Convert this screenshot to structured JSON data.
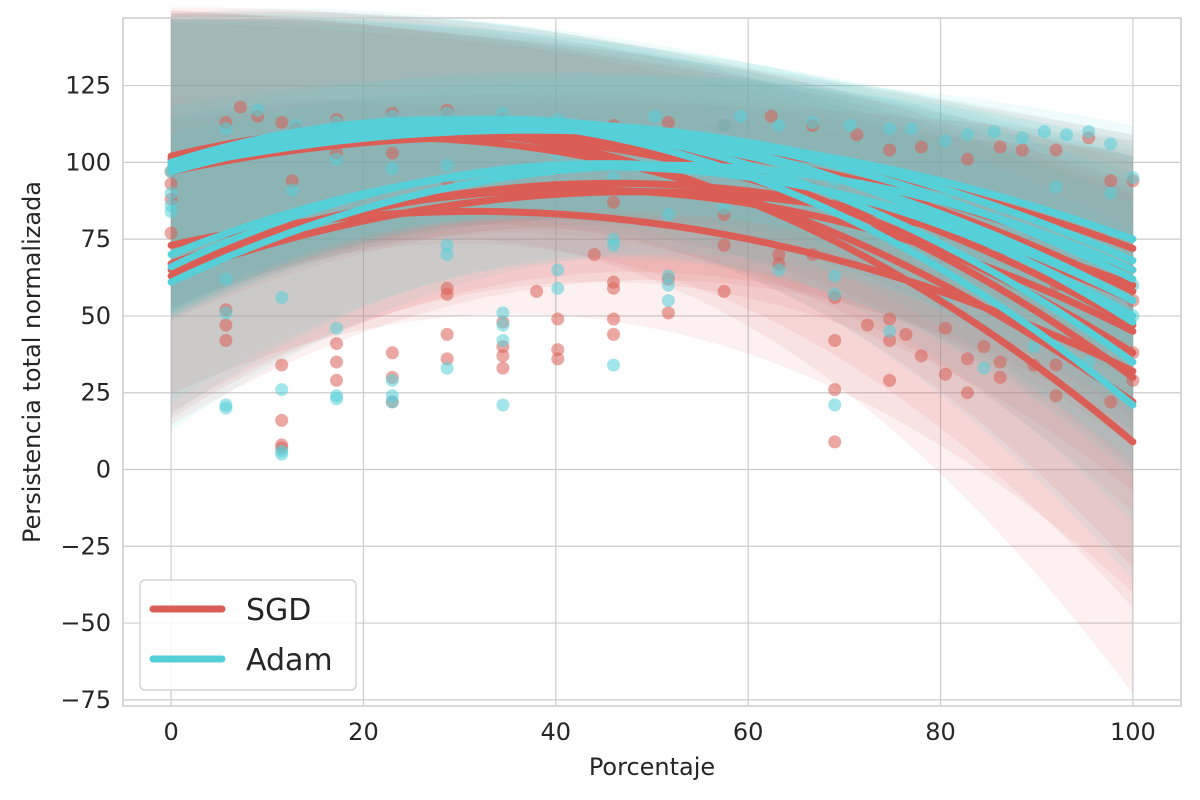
{
  "chart_data": {
    "type": "scatter",
    "xlabel": "Porcentaje",
    "ylabel": "Persistencia total normalizada",
    "xlim": [
      -5,
      105
    ],
    "ylim": [
      -77,
      147
    ],
    "x_ticks": [
      0,
      20,
      40,
      60,
      80,
      100
    ],
    "y_ticks": [
      -75,
      -50,
      -25,
      0,
      25,
      50,
      75,
      100,
      125
    ],
    "x_tick_labels": [
      "0",
      "20",
      "40",
      "60",
      "80",
      "100"
    ],
    "y_tick_labels": [
      "−75",
      "−50",
      "−25",
      "0",
      "25",
      "50",
      "75",
      "100",
      "125"
    ],
    "grid": true,
    "legend_position": "bottom-left",
    "colors": {
      "SGD": "#db5e56",
      "Adam": "#56d0d8",
      "grid": "#cccccc",
      "axes": "#cccccc"
    },
    "series": [
      {
        "name": "SGD",
        "color": "#db5e56",
        "fits": [
          {
            "start": 102,
            "peak_x": 30,
            "peak": 110,
            "end": 9,
            "band_end": 70
          },
          {
            "start": 101,
            "peak_x": 25,
            "peak": 108,
            "end": 22,
            "band_end": 55
          },
          {
            "start": 100,
            "peak_x": 35,
            "peak": 112,
            "end": 30,
            "band_end": 50
          },
          {
            "start": 99,
            "peak_x": 30,
            "peak": 109,
            "end": 38,
            "band_end": 40
          },
          {
            "start": 98,
            "peak_x": 40,
            "peak": 108,
            "end": 47,
            "band_end": 35
          },
          {
            "start": 100,
            "peak_x": 35,
            "peak": 111,
            "end": 58,
            "band_end": 30
          },
          {
            "start": 97,
            "peak_x": 45,
            "peak": 107,
            "end": 65,
            "band_end": 25
          },
          {
            "start": 101,
            "peak_x": 40,
            "peak": 110,
            "end": 72,
            "band_end": 25
          },
          {
            "start": 73,
            "peak_x": 30,
            "peak": 84,
            "end": 32,
            "band_end": 60
          },
          {
            "start": 67,
            "peak_x": 45,
            "peak": 91,
            "end": 45,
            "band_end": 40
          },
          {
            "start": 65,
            "peak_x": 50,
            "peak": 93,
            "end": 55,
            "band_end": 35
          },
          {
            "start": 63,
            "peak_x": 55,
            "peak": 90,
            "end": 60,
            "band_end": 35
          }
        ]
      },
      {
        "name": "Adam",
        "color": "#56d0d8",
        "fits": [
          {
            "start": 100,
            "peak_x": 35,
            "peak": 113,
            "end": 21,
            "band_end": 45
          },
          {
            "start": 99,
            "peak_x": 40,
            "peak": 112,
            "end": 35,
            "band_end": 40
          },
          {
            "start": 98,
            "peak_x": 45,
            "peak": 112,
            "end": 48,
            "band_end": 35
          },
          {
            "start": 100,
            "peak_x": 40,
            "peak": 111,
            "end": 55,
            "band_end": 30
          },
          {
            "start": 97,
            "peak_x": 50,
            "peak": 110,
            "end": 62,
            "band_end": 28
          },
          {
            "start": 99,
            "peak_x": 45,
            "peak": 112,
            "end": 68,
            "band_end": 25
          },
          {
            "start": 98,
            "peak_x": 50,
            "peak": 109,
            "end": 75,
            "band_end": 22
          },
          {
            "start": 70,
            "peak_x": 55,
            "peak": 97,
            "end": 55,
            "band_end": 40
          },
          {
            "start": 66,
            "peak_x": 55,
            "peak": 98,
            "end": 50,
            "band_end": 40
          },
          {
            "start": 61,
            "peak_x": 60,
            "peak": 98,
            "end": 65,
            "band_end": 35
          }
        ]
      }
    ],
    "x_samples": [
      0,
      5.7,
      11.5,
      17.2,
      23,
      28.7,
      34.5,
      40.2,
      46,
      51.7,
      57.5,
      63.2,
      69,
      74.7,
      80.5,
      86.2,
      92,
      97.7,
      100
    ],
    "sgd_points": [
      [
        0,
        97
      ],
      [
        0,
        93
      ],
      [
        0,
        77
      ],
      [
        0,
        88
      ],
      [
        5.7,
        47
      ],
      [
        5.7,
        42
      ],
      [
        5.7,
        52
      ],
      [
        11.5,
        34
      ],
      [
        11.5,
        16
      ],
      [
        11.5,
        7
      ],
      [
        11.5,
        8
      ],
      [
        17.2,
        41
      ],
      [
        17.2,
        35
      ],
      [
        17.2,
        29
      ],
      [
        23,
        38
      ],
      [
        23,
        30
      ],
      [
        23,
        22
      ],
      [
        28.7,
        59
      ],
      [
        28.7,
        57
      ],
      [
        28.7,
        44
      ],
      [
        28.7,
        36
      ],
      [
        34.5,
        48
      ],
      [
        34.5,
        40
      ],
      [
        34.5,
        33
      ],
      [
        34.5,
        37
      ],
      [
        38,
        58
      ],
      [
        40.2,
        49
      ],
      [
        40.2,
        39
      ],
      [
        40.2,
        36
      ],
      [
        44,
        70
      ],
      [
        46,
        61
      ],
      [
        46,
        59
      ],
      [
        46,
        49
      ],
      [
        46,
        44
      ],
      [
        51.7,
        62
      ],
      [
        51.7,
        51
      ],
      [
        57.5,
        58
      ],
      [
        57.5,
        73
      ],
      [
        63.2,
        70
      ],
      [
        63.2,
        67
      ],
      [
        66.7,
        70
      ],
      [
        69,
        56
      ],
      [
        69,
        42
      ],
      [
        69,
        26
      ],
      [
        69,
        9
      ],
      [
        72.4,
        47
      ],
      [
        74.7,
        49
      ],
      [
        74.7,
        42
      ],
      [
        74.7,
        29
      ],
      [
        76.4,
        44
      ],
      [
        78,
        37
      ],
      [
        80.5,
        46
      ],
      [
        80.5,
        31
      ],
      [
        82.8,
        36
      ],
      [
        82.8,
        25
      ],
      [
        84.5,
        40
      ],
      [
        86.2,
        35
      ],
      [
        86.2,
        30
      ],
      [
        89.7,
        34
      ],
      [
        92,
        34
      ],
      [
        92,
        24
      ],
      [
        97.7,
        22
      ],
      [
        100,
        38
      ],
      [
        100,
        29
      ],
      [
        5.7,
        113
      ],
      [
        7.2,
        118
      ],
      [
        9,
        115
      ],
      [
        11.5,
        113
      ],
      [
        13,
        111
      ],
      [
        17.2,
        114
      ],
      [
        23,
        116
      ],
      [
        28.7,
        117
      ],
      [
        34.5,
        114
      ],
      [
        40.2,
        112
      ],
      [
        46,
        112
      ],
      [
        51.7,
        113
      ],
      [
        57.5,
        112
      ],
      [
        62.4,
        115
      ],
      [
        66.7,
        112
      ],
      [
        71.3,
        109
      ],
      [
        74.7,
        104
      ],
      [
        78,
        105
      ],
      [
        82.8,
        101
      ],
      [
        86.2,
        105
      ],
      [
        88.5,
        104
      ],
      [
        92,
        104
      ],
      [
        95.4,
        108
      ],
      [
        97.7,
        94
      ],
      [
        100,
        94
      ],
      [
        12.6,
        94
      ],
      [
        17.2,
        103
      ],
      [
        23,
        103
      ],
      [
        28.7,
        94
      ],
      [
        40.2,
        98
      ],
      [
        46,
        87
      ],
      [
        57.5,
        83
      ],
      [
        63.2,
        93
      ],
      [
        69,
        86
      ],
      [
        74.7,
        83
      ],
      [
        80.5,
        78
      ],
      [
        86.2,
        70
      ],
      [
        92,
        60
      ],
      [
        97.7,
        50
      ],
      [
        100,
        55
      ]
    ],
    "adam_points": [
      [
        0,
        97
      ],
      [
        0,
        86
      ],
      [
        0,
        84
      ],
      [
        0,
        90
      ],
      [
        5.7,
        62
      ],
      [
        5.7,
        51
      ],
      [
        5.7,
        21
      ],
      [
        5.7,
        20
      ],
      [
        11.5,
        56
      ],
      [
        11.5,
        26
      ],
      [
        11.5,
        6
      ],
      [
        11.5,
        5
      ],
      [
        12.6,
        91
      ],
      [
        17.2,
        46
      ],
      [
        17.2,
        24
      ],
      [
        17.2,
        23
      ],
      [
        23,
        29
      ],
      [
        23,
        24
      ],
      [
        23,
        22
      ],
      [
        28.7,
        73
      ],
      [
        28.7,
        70
      ],
      [
        28.7,
        33
      ],
      [
        34.5,
        51
      ],
      [
        34.5,
        47
      ],
      [
        34.5,
        42
      ],
      [
        34.5,
        21
      ],
      [
        40.2,
        65
      ],
      [
        40.2,
        59
      ],
      [
        46,
        75
      ],
      [
        46,
        73
      ],
      [
        46,
        34
      ],
      [
        51.7,
        63
      ],
      [
        51.7,
        60
      ],
      [
        51.7,
        55
      ],
      [
        63.2,
        65
      ],
      [
        69,
        63
      ],
      [
        69,
        57
      ],
      [
        69,
        21
      ],
      [
        74.7,
        45
      ],
      [
        80.5,
        55
      ],
      [
        84.5,
        33
      ],
      [
        89.7,
        40
      ],
      [
        95.4,
        35
      ],
      [
        100,
        50
      ],
      [
        5.7,
        111
      ],
      [
        9,
        117
      ],
      [
        13,
        112
      ],
      [
        17.2,
        113
      ],
      [
        23,
        115
      ],
      [
        28.7,
        116
      ],
      [
        34.5,
        116
      ],
      [
        40.2,
        114
      ],
      [
        46,
        111
      ],
      [
        50.3,
        115
      ],
      [
        57.5,
        112
      ],
      [
        59.2,
        115
      ],
      [
        63.2,
        112
      ],
      [
        66.7,
        113
      ],
      [
        70.6,
        112
      ],
      [
        74.7,
        111
      ],
      [
        77,
        111
      ],
      [
        80.5,
        107
      ],
      [
        82.8,
        109
      ],
      [
        85.6,
        110
      ],
      [
        88.5,
        108
      ],
      [
        90.8,
        110
      ],
      [
        93.1,
        109
      ],
      [
        95.4,
        110
      ],
      [
        97.7,
        106
      ],
      [
        100,
        95
      ],
      [
        17.2,
        101
      ],
      [
        23,
        98
      ],
      [
        28.7,
        99
      ],
      [
        40.2,
        103
      ],
      [
        46,
        95
      ],
      [
        51.7,
        83
      ],
      [
        57.5,
        85
      ],
      [
        63.2,
        97
      ],
      [
        69,
        94
      ],
      [
        74.7,
        92
      ],
      [
        80.5,
        89
      ],
      [
        86.2,
        85
      ],
      [
        92,
        80
      ],
      [
        97.7,
        75
      ],
      [
        100,
        60
      ],
      [
        92,
        92
      ],
      [
        97.7,
        90
      ]
    ],
    "legend": [
      {
        "label": "SGD",
        "color": "#db5e56"
      },
      {
        "label": "Adam",
        "color": "#56d0d8"
      }
    ]
  }
}
